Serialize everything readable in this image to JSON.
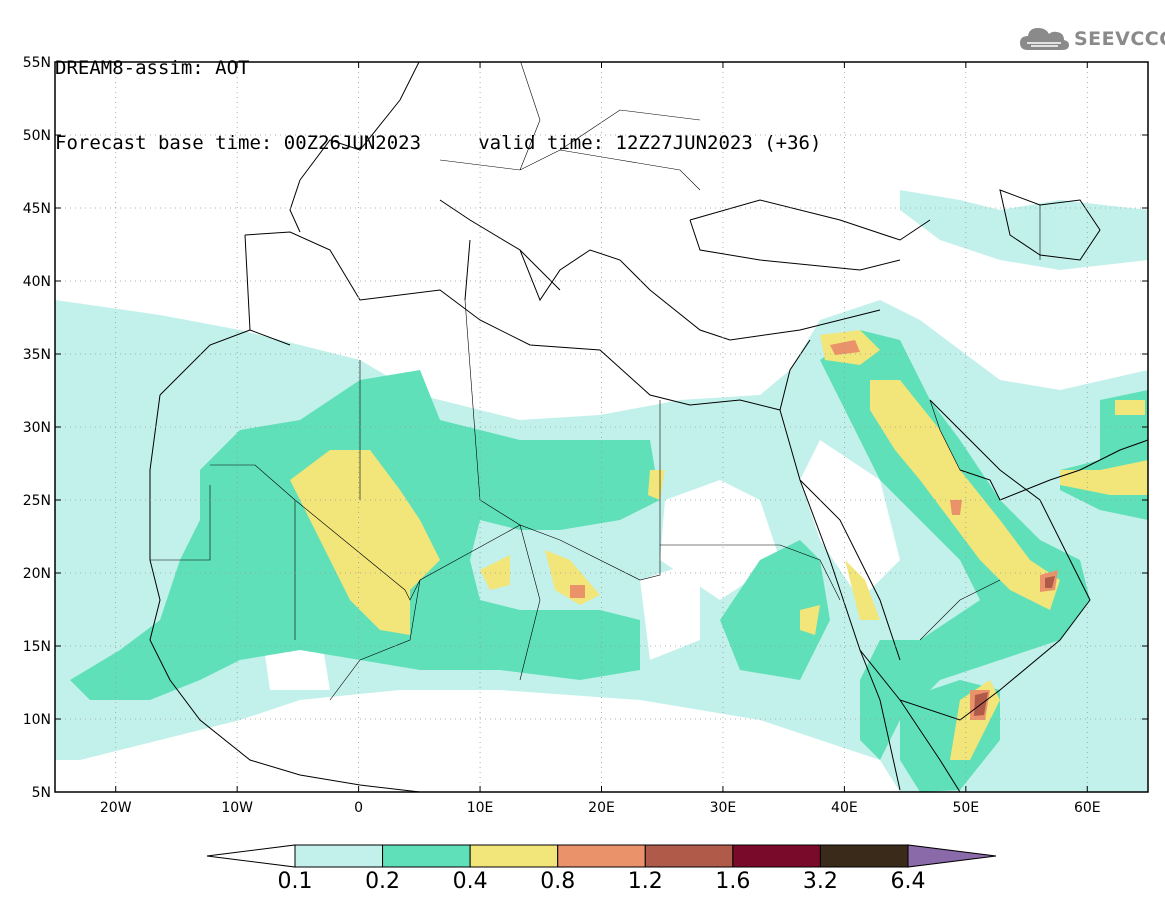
{
  "header": {
    "line1": "DREAM8-assim: AOT",
    "line2": "Forecast base time: 00Z26JUN2023     valid time: 12Z27JUN2023 (+36)"
  },
  "brand": {
    "name": "SEEVCCC",
    "icon": "cloud-icon",
    "color": "#8a8a8a"
  },
  "map": {
    "lon_range": [
      -25,
      65
    ],
    "lat_range": [
      5,
      55
    ],
    "lat_ticks": [
      {
        "value": 55,
        "label": "55N"
      },
      {
        "value": 50,
        "label": "50N"
      },
      {
        "value": 45,
        "label": "45N"
      },
      {
        "value": 40,
        "label": "40N"
      },
      {
        "value": 35,
        "label": "35N"
      },
      {
        "value": 30,
        "label": "30N"
      },
      {
        "value": 25,
        "label": "25N"
      },
      {
        "value": 20,
        "label": "20N"
      },
      {
        "value": 15,
        "label": "15N"
      },
      {
        "value": 10,
        "label": "10N"
      },
      {
        "value": 5,
        "label": "5N"
      }
    ],
    "lon_ticks": [
      {
        "value": -20,
        "label": "20W"
      },
      {
        "value": -10,
        "label": "10W"
      },
      {
        "value": 0,
        "label": "0"
      },
      {
        "value": 10,
        "label": "10E"
      },
      {
        "value": 20,
        "label": "20E"
      },
      {
        "value": 30,
        "label": "30E"
      },
      {
        "value": 40,
        "label": "40E"
      },
      {
        "value": 50,
        "label": "50E"
      },
      {
        "value": 60,
        "label": "60E"
      }
    ]
  },
  "colorbar": {
    "colors": [
      "#c2f1eb",
      "#5fe0b8",
      "#f2e57a",
      "#ea926a",
      "#b05a4a",
      "#7a0a2a",
      "#3a2a1a"
    ],
    "under_color": "#ffffff",
    "over_color": "#8a6aa8",
    "labels": [
      "0.1",
      "0.2",
      "0.4",
      "0.8",
      "1.2",
      "1.6",
      "3.2",
      "6.4"
    ]
  }
}
